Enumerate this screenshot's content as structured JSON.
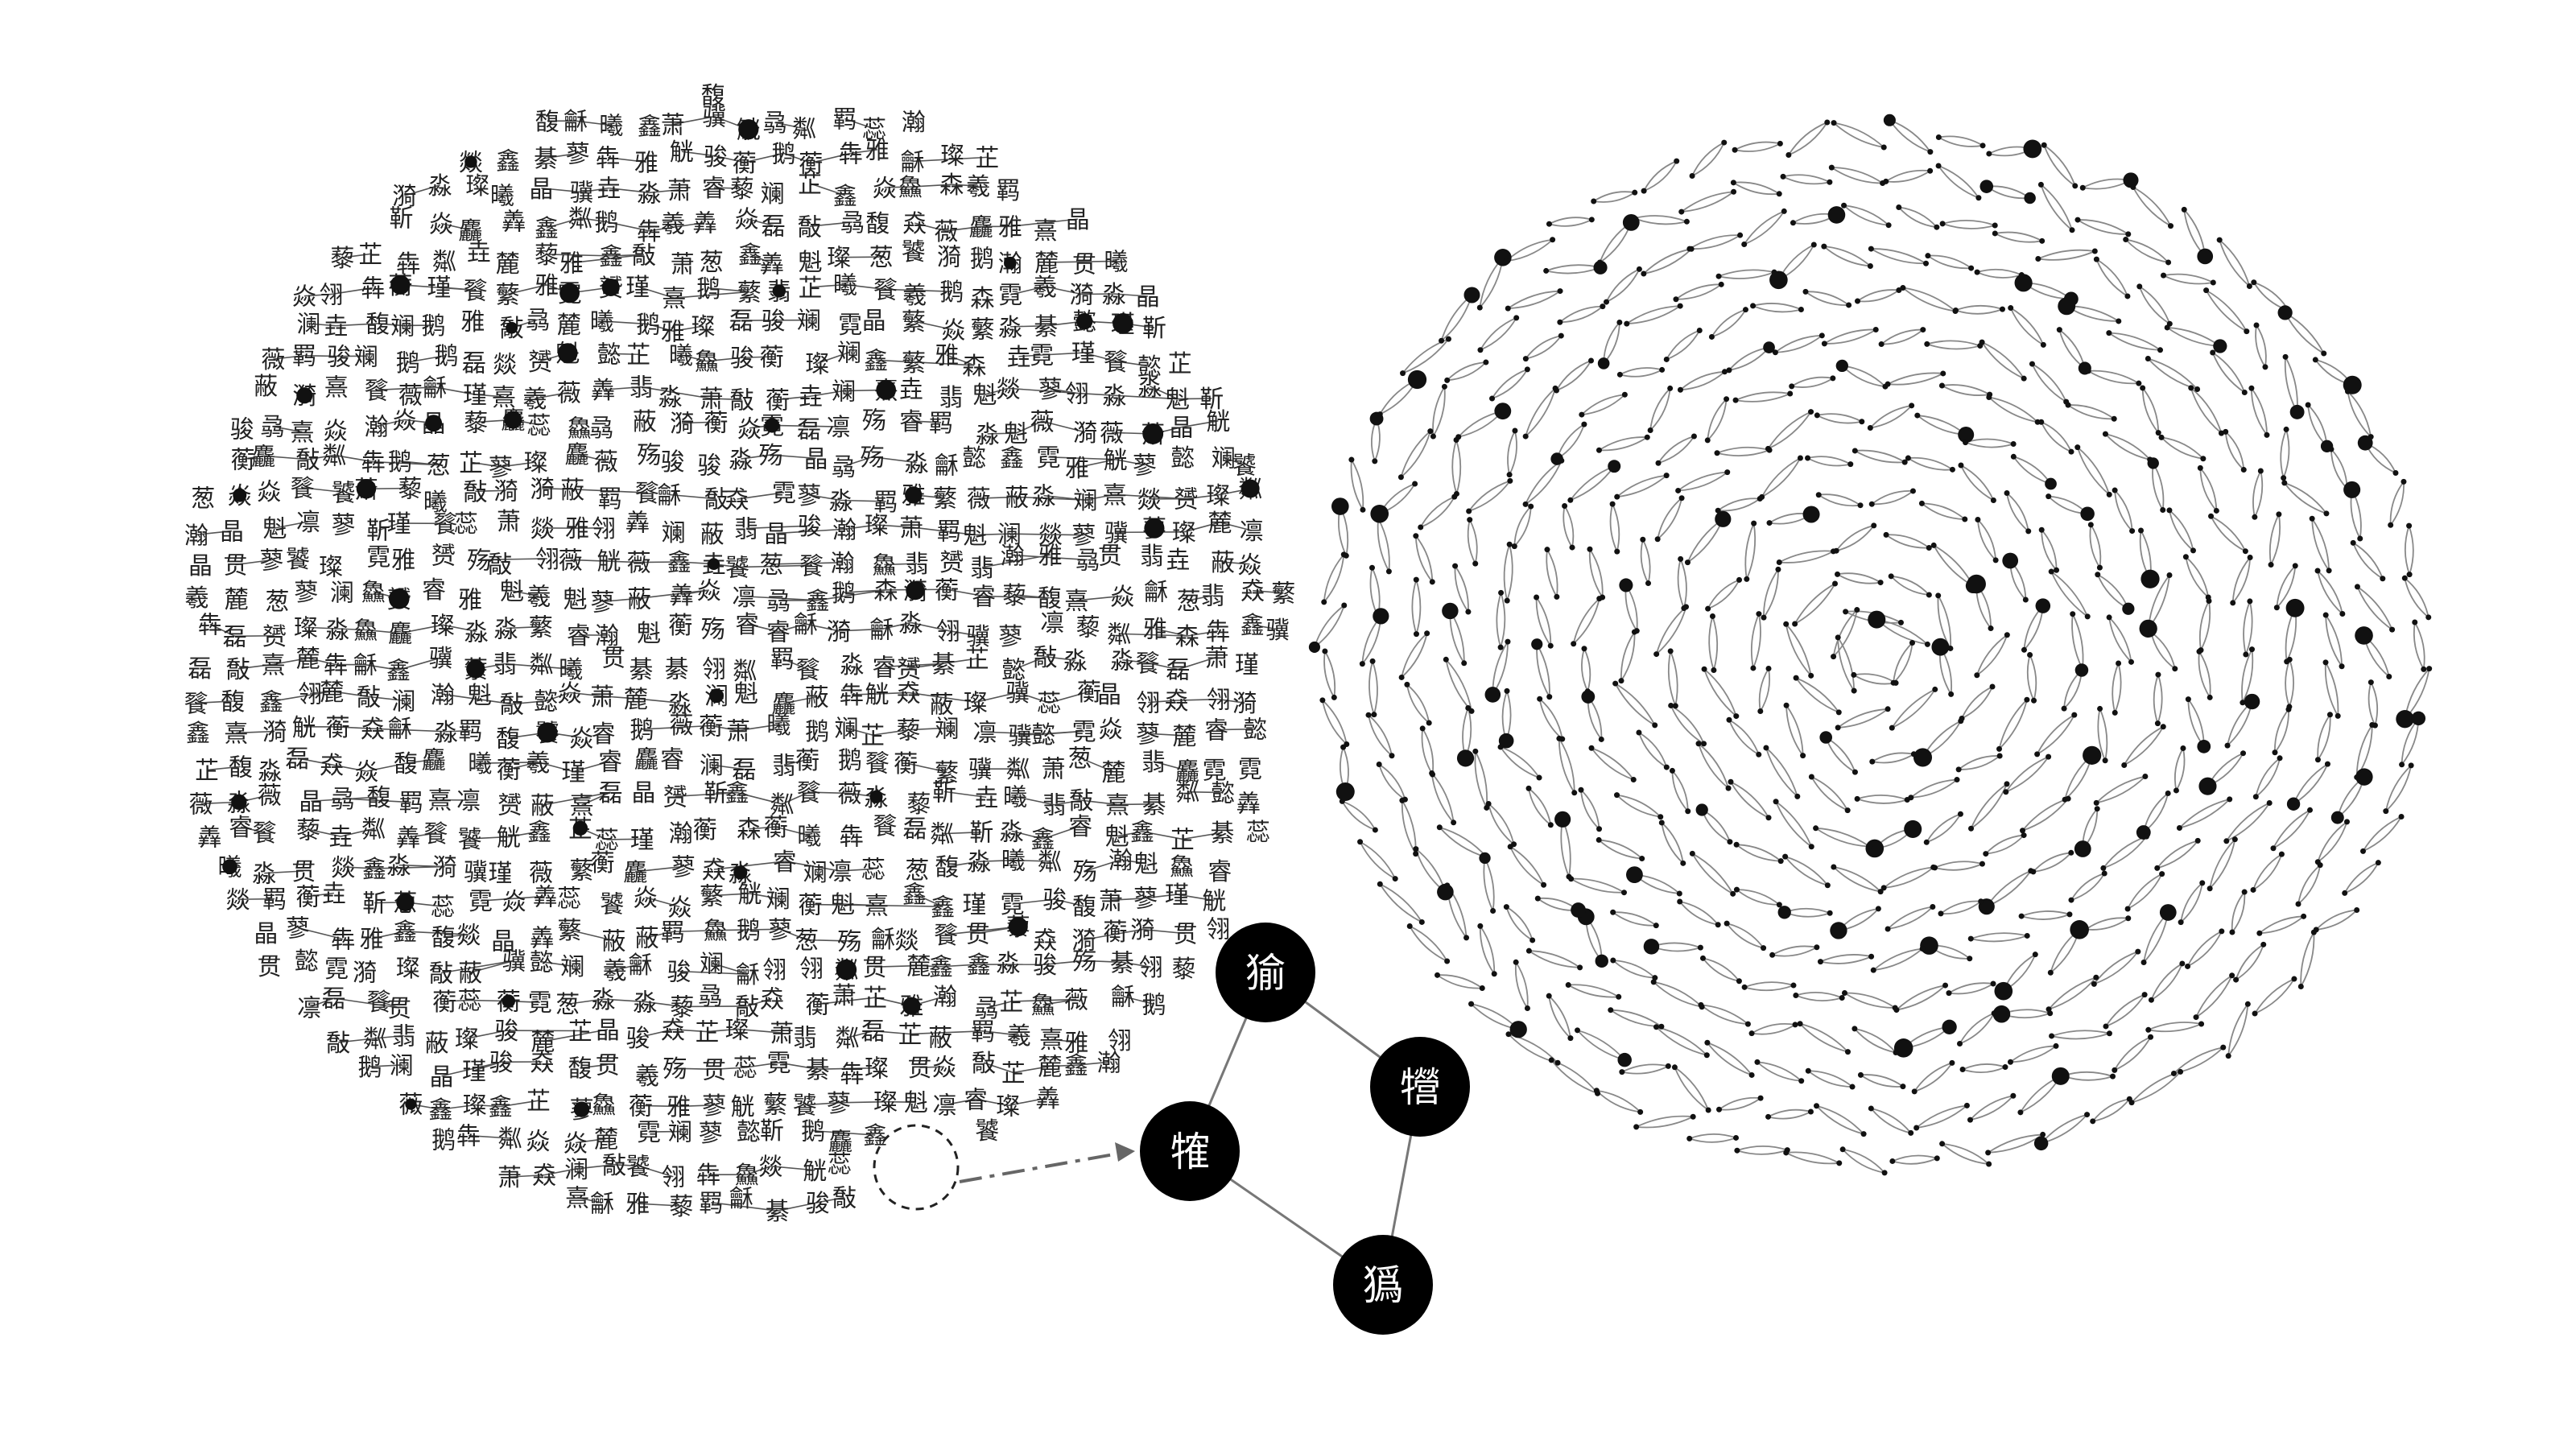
{
  "figure": {
    "left_panel": {
      "description_hidden": true,
      "glyph_pool": [
        "敽",
        "贯",
        "雅",
        "蔽",
        "萧",
        "葱",
        "翡",
        "骏",
        "觥",
        "鹅",
        "瀚",
        "麓",
        "蕊",
        "粼",
        "璨",
        "熹",
        "霓",
        "瑾",
        "翎",
        "淼",
        "焱",
        "魁",
        "凛",
        "曦",
        "靳",
        "澜",
        "懿",
        "漪",
        "睿",
        "殇",
        "羁",
        "饕",
        "餮",
        "赟",
        "骥",
        "龢",
        "犇",
        "骉",
        "鑫",
        "垚",
        "森",
        "晶",
        "磊",
        "鑫",
        "燚",
        "淼",
        "鱻",
        "羴",
        "麤",
        "猋",
        "羲",
        "斓",
        "綦",
        "馥",
        "藜",
        "蘅",
        "芷",
        "蓼",
        "薇",
        "蘩"
      ]
    },
    "zoom": {
      "nodes": [
        {
          "id": "a",
          "glyph": "㺄"
        },
        {
          "id": "b",
          "glyph": "㹚"
        },
        {
          "id": "c",
          "glyph": "㹊"
        },
        {
          "id": "d",
          "glyph": "㺔"
        }
      ]
    },
    "colors": {
      "node_fill": "#000000",
      "edge": "#777777",
      "callout": "#222222",
      "arrow": "#666666"
    }
  }
}
